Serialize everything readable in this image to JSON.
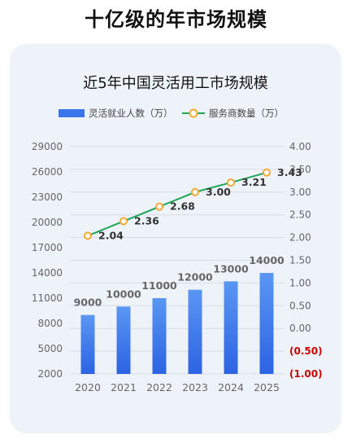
{
  "page": {
    "title": "十亿级的年市场规模"
  },
  "chart_data": {
    "type": "bar+line",
    "title": "近5年中国灵活用工市场规模",
    "categories": [
      "2020",
      "2021",
      "2022",
      "2023",
      "2024",
      "2025"
    ],
    "series": [
      {
        "name": "灵活就业人数（万）",
        "type": "bar",
        "axis": "left",
        "values": [
          9000,
          10000,
          11000,
          12000,
          13000,
          14000
        ],
        "color": "#3b76ec"
      },
      {
        "name": "服务商数量（万）",
        "type": "line",
        "axis": "right",
        "values": [
          2.04,
          2.36,
          2.68,
          3.0,
          3.21,
          3.43
        ],
        "data_labels": [
          "2.04",
          "2.36",
          "2.68",
          "3.00",
          "3.21",
          "3.43"
        ],
        "color": "#1da658",
        "marker_color": "#f3a935"
      }
    ],
    "left_axis": {
      "ylim": [
        2000,
        29000
      ],
      "ticks": [
        "2000",
        "5000",
        "8000",
        "11000",
        "14000",
        "17000",
        "20000",
        "23000",
        "26000",
        "29000"
      ]
    },
    "right_axis": {
      "ylim": [
        -1.0,
        4.0
      ],
      "ticks": [
        "(1.00)",
        "(0.50)",
        "0.00",
        "0.50",
        "1.00",
        "1.50",
        "2.00",
        "2.50",
        "3.00",
        "3.50",
        "4.00"
      ],
      "negative_color": "#cc0000"
    },
    "grid": true,
    "legend": "top"
  }
}
